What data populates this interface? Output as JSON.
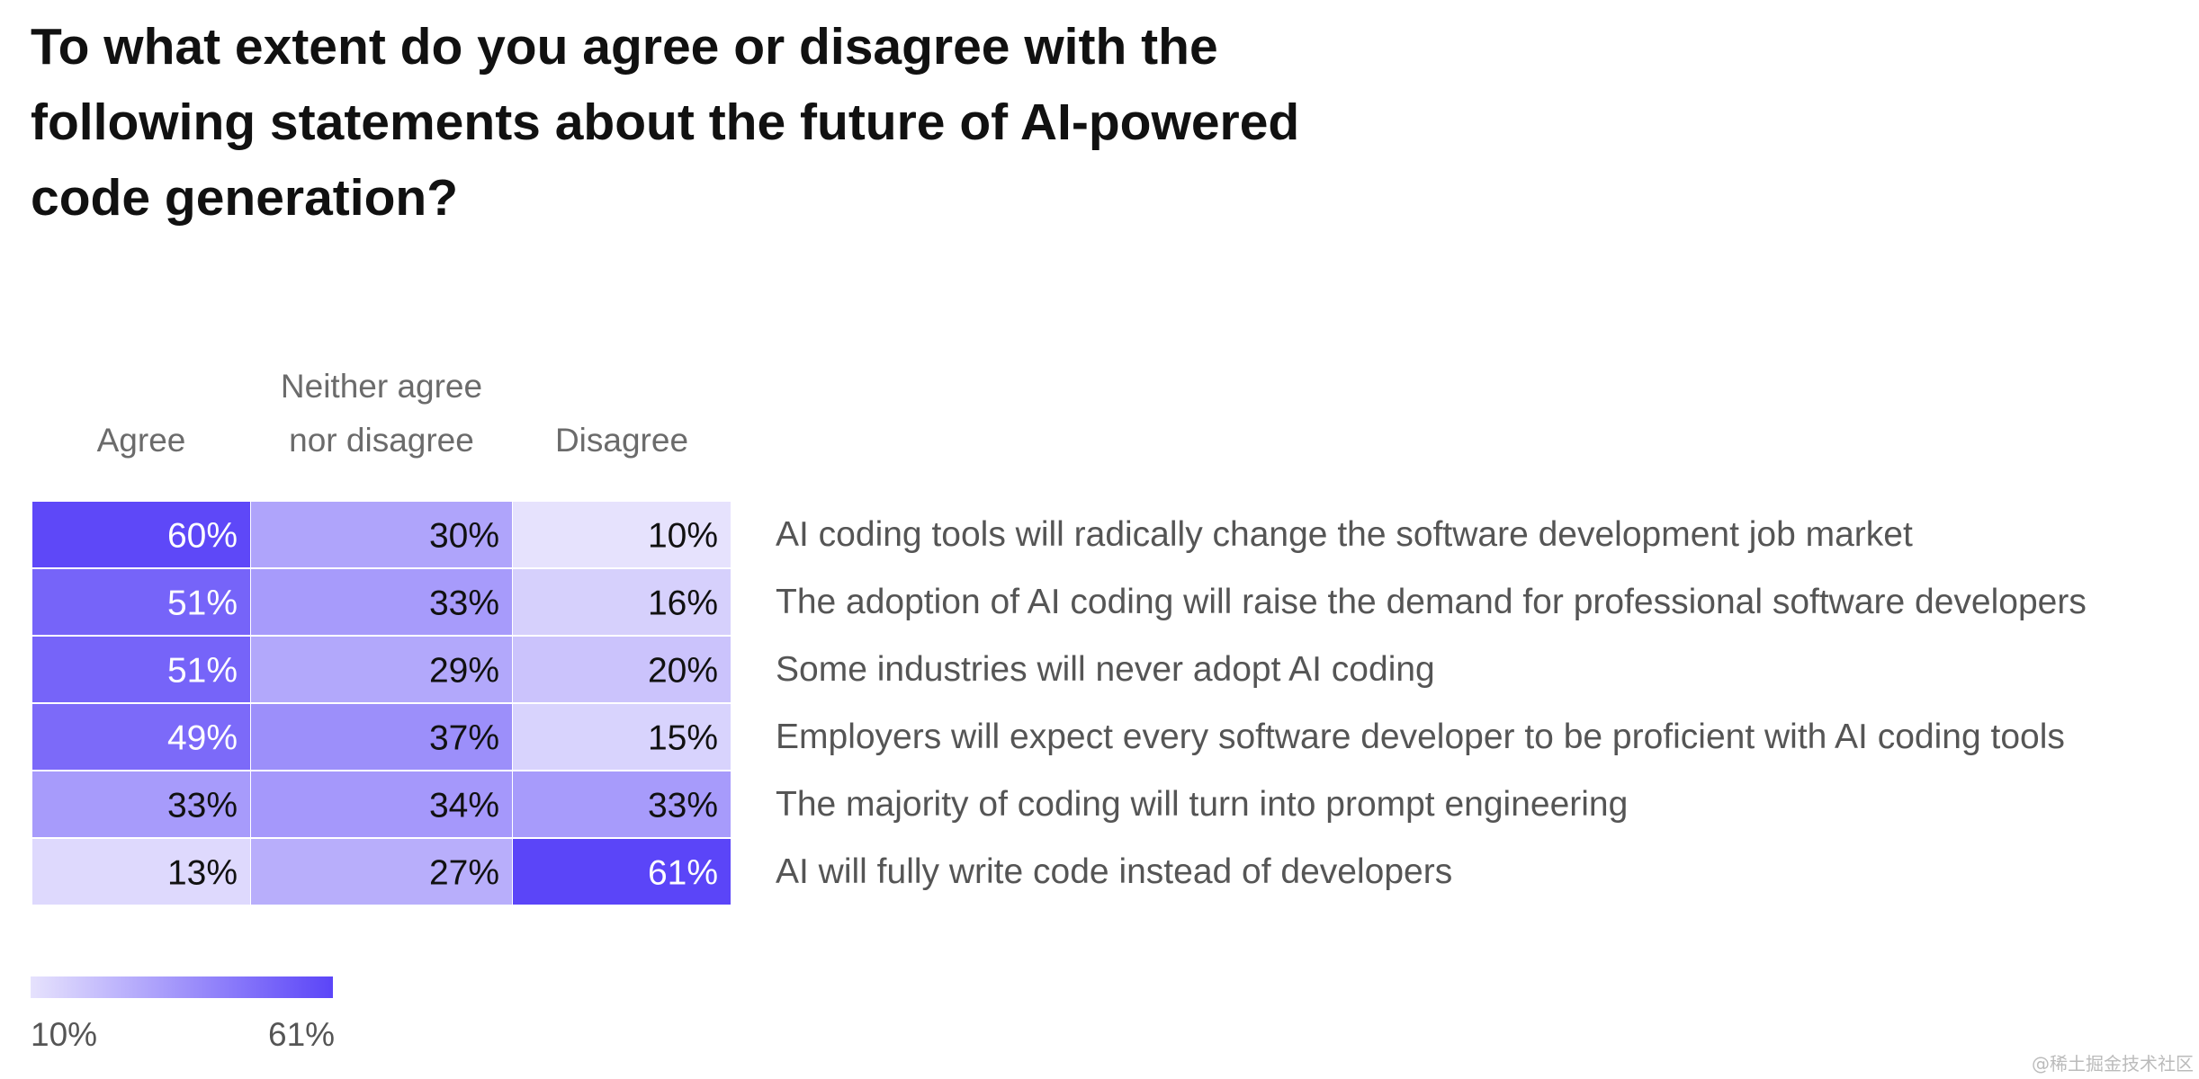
{
  "chart_data": {
    "type": "heatmap",
    "title": "To what extent do you agree or disagree with the following statements about the future of AI-powered code generation?",
    "columns": [
      "Agree",
      "Neither agree nor disagree",
      "Disagree"
    ],
    "column_header_lines": [
      [
        "Agree"
      ],
      [
        "Neither agree",
        "nor disagree"
      ],
      [
        "Disagree"
      ]
    ],
    "rows": [
      "AI coding tools will radically change the software development job market",
      "The adoption of AI coding will raise the demand for professional software developers",
      "Some industries will never adopt AI coding",
      "Employers will expect every software developer to be proficient with AI coding tools",
      "The majority of coding will turn into prompt engineering",
      "AI will fully write code instead of developers"
    ],
    "values": [
      [
        60,
        30,
        10
      ],
      [
        51,
        33,
        16
      ],
      [
        51,
        29,
        20
      ],
      [
        49,
        37,
        15
      ],
      [
        33,
        34,
        33
      ],
      [
        13,
        27,
        61
      ]
    ],
    "unit": "%",
    "color_scale": {
      "min": 10,
      "max": 61,
      "min_label": "10%",
      "max_label": "61%",
      "min_color": "#e6e2fd",
      "max_color": "#5b45f8"
    }
  },
  "watermark": "@稀土掘金技术社区"
}
